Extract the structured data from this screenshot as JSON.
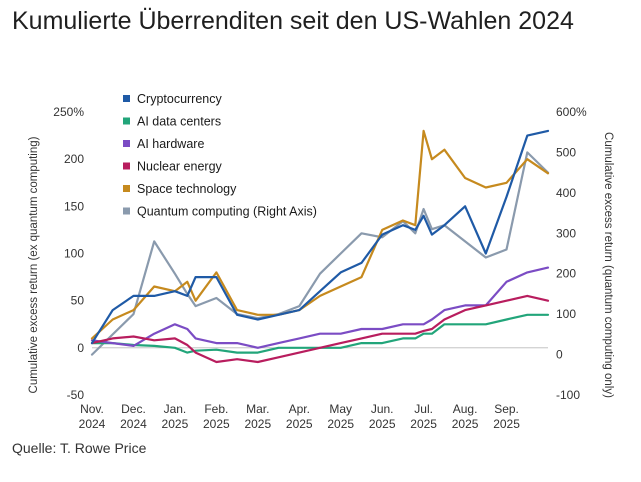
{
  "title": "Kumulierte Überrenditen seit den US-Wahlen 2024",
  "source": "Quelle: T. Rowe Price",
  "chart_data": {
    "type": "line",
    "ylabel": "Cumulative excess return (ex quantum computing)",
    "ylabel_right": "Cumulative excess return (quantum computing only)",
    "ylim": [
      -50,
      250
    ],
    "ylim_right": [
      -100,
      600
    ],
    "y_ticks": [
      "250%",
      "200",
      "150",
      "100",
      "50",
      "0",
      "-50"
    ],
    "y_ticks_right": [
      "600%",
      "500",
      "400",
      "300",
      "200",
      "100",
      "0",
      "-100"
    ],
    "x_ticks": [
      {
        "month": "Nov.",
        "year": "2024"
      },
      {
        "month": "Dec.",
        "year": "2024"
      },
      {
        "month": "Jan.",
        "year": "2025"
      },
      {
        "month": "Feb.",
        "year": "2025"
      },
      {
        "month": "Mar.",
        "year": "2025"
      },
      {
        "month": "Apr.",
        "year": "2025"
      },
      {
        "month": "May",
        "year": "2025"
      },
      {
        "month": "Jun.",
        "year": "2025"
      },
      {
        "month": "Jul.",
        "year": "2025"
      },
      {
        "month": "Aug.",
        "year": "2025"
      },
      {
        "month": "Sep.",
        "year": "2025"
      }
    ],
    "x": [
      0,
      0.5,
      1,
      1.5,
      2,
      2.3,
      2.5,
      3,
      3.5,
      4,
      4.5,
      5,
      5.5,
      6,
      6.5,
      7,
      7.5,
      7.8,
      8,
      8.2,
      8.5,
      9,
      9.5,
      10,
      10.5,
      11
    ],
    "legend_position": "top-left",
    "series": [
      {
        "name": "Cryptocurrency",
        "color": "#1f5aa6",
        "axis": "left",
        "values": [
          5,
          40,
          55,
          55,
          60,
          55,
          75,
          75,
          35,
          30,
          35,
          40,
          60,
          80,
          90,
          120,
          130,
          125,
          140,
          120,
          130,
          150,
          100,
          160,
          225,
          230
        ]
      },
      {
        "name": "AI data centers",
        "color": "#22a57a",
        "axis": "left",
        "values": [
          5,
          5,
          3,
          2,
          0,
          -5,
          -3,
          -2,
          -5,
          -5,
          0,
          0,
          0,
          0,
          5,
          5,
          10,
          10,
          15,
          15,
          25,
          25,
          25,
          30,
          35,
          35
        ]
      },
      {
        "name": "AI hardware",
        "color": "#7b4cc4",
        "axis": "left",
        "values": [
          8,
          5,
          2,
          15,
          25,
          20,
          10,
          5,
          5,
          0,
          5,
          10,
          15,
          15,
          20,
          20,
          25,
          25,
          25,
          30,
          40,
          45,
          45,
          70,
          80,
          85
        ]
      },
      {
        "name": "Nuclear energy",
        "color": "#b81d5e",
        "axis": "left",
        "values": [
          5,
          10,
          12,
          8,
          10,
          3,
          -5,
          -15,
          -12,
          -15,
          -10,
          -5,
          0,
          5,
          10,
          15,
          15,
          15,
          18,
          20,
          30,
          40,
          45,
          50,
          55,
          50
        ]
      },
      {
        "name": "Space technology",
        "color": "#c68a1e",
        "axis": "left",
        "values": [
          10,
          30,
          40,
          65,
          60,
          70,
          50,
          80,
          40,
          35,
          35,
          40,
          55,
          65,
          75,
          125,
          135,
          130,
          230,
          200,
          210,
          180,
          170,
          175,
          200,
          185
        ]
      },
      {
        "name": "Quantum computing (Right Axis)",
        "color": "#8a9aad",
        "axis": "right",
        "values": [
          0,
          50,
          100,
          280,
          200,
          150,
          120,
          140,
          100,
          90,
          100,
          120,
          200,
          250,
          300,
          290,
          330,
          300,
          360,
          310,
          320,
          280,
          240,
          260,
          500,
          450
        ]
      }
    ]
  }
}
